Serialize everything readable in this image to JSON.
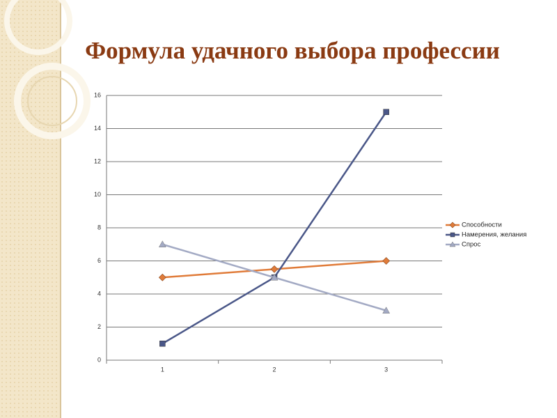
{
  "chart_data": {
    "type": "line",
    "title": "Формула удачного выбора профессии",
    "categories": [
      "1",
      "2",
      "3"
    ],
    "series": [
      {
        "name": "Способности",
        "color": "#e07b39",
        "marker": "diamond",
        "values": [
          5,
          5.5,
          6
        ]
      },
      {
        "name": "Намерения, желания",
        "color": "#4a5788",
        "marker": "square",
        "values": [
          1,
          5,
          15
        ]
      },
      {
        "name": "Спрос",
        "color": "#a3aac4",
        "marker": "triangle",
        "values": [
          7,
          5,
          3
        ]
      }
    ],
    "ylim": [
      0,
      16
    ],
    "yticks": [
      0,
      2,
      4,
      6,
      8,
      10,
      12,
      14,
      16
    ],
    "grid": true,
    "legend": "right"
  }
}
